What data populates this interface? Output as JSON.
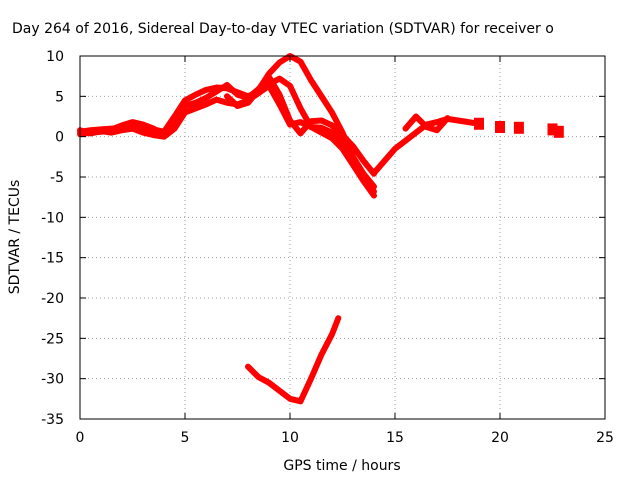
{
  "chart_data": {
    "type": "scatter",
    "title": "Day 264 of 2016, Sidereal Day-to-day VTEC variation (SDTVAR) for receiver o",
    "xlabel": "GPS time / hours",
    "ylabel": "SDTVAR / TECUs",
    "xlim": [
      0,
      25
    ],
    "ylim": [
      -35,
      10
    ],
    "xticks": [
      0,
      5,
      10,
      15,
      20,
      25
    ],
    "yticks": [
      10,
      5,
      0,
      -5,
      -10,
      -15,
      -20,
      -25,
      -30,
      -35
    ],
    "grid": true,
    "legend": "none",
    "colors": {
      "series": "#ff0000",
      "grid": "#a0a0a0",
      "axes": "#000000"
    },
    "series": [
      {
        "kind": "line",
        "x": [
          0.0,
          0.5,
          1.0,
          1.5,
          2.0,
          2.5,
          3.0,
          3.5,
          4.0,
          4.5,
          5.0,
          5.5,
          6.0,
          6.5,
          7.0,
          7.5,
          8.0,
          8.5,
          9.0,
          9.5,
          10.0,
          10.5,
          11.0,
          11.5,
          12.0,
          12.5,
          13.0,
          13.5,
          14.0
        ],
        "y": [
          0.6,
          0.8,
          0.9,
          1.0,
          1.1,
          1.2,
          1.0,
          0.9,
          0.6,
          2.5,
          4.5,
          5.2,
          5.8,
          6.1,
          6.0,
          5.5,
          5.0,
          5.6,
          6.5,
          7.2,
          6.3,
          3.5,
          1.2,
          0.5,
          -0.2,
          -1.5,
          -3.5,
          -5.5,
          -6.8
        ]
      },
      {
        "kind": "line",
        "x": [
          0.0,
          0.5,
          1.0,
          1.5,
          2.0,
          2.5,
          3.0,
          3.5,
          4.0,
          4.5,
          5.0,
          5.5,
          6.0,
          6.5,
          7.0,
          7.5,
          8.0,
          8.5,
          9.0,
          9.5,
          10.0,
          10.5,
          11.0,
          11.5,
          12.0,
          12.5,
          13.0,
          13.5,
          14.0
        ],
        "y": [
          0.3,
          0.5,
          0.6,
          0.9,
          1.4,
          1.8,
          1.5,
          1.0,
          0.2,
          1.8,
          3.8,
          4.2,
          4.8,
          5.6,
          6.4,
          5.2,
          4.8,
          5.9,
          7.4,
          5.2,
          2.0,
          0.4,
          1.9,
          2.0,
          1.4,
          0.2,
          -1.2,
          -3.0,
          -4.6
        ]
      },
      {
        "kind": "line",
        "x": [
          0.0,
          0.5,
          1.0,
          1.5,
          2.0,
          2.5,
          3.0,
          3.5,
          4.0,
          4.5,
          5.0,
          5.5,
          6.0,
          6.5,
          7.0,
          7.5,
          8.0,
          8.5,
          9.0,
          9.5,
          10.0,
          10.5,
          11.0,
          11.5,
          12.0,
          12.5,
          13.0,
          13.5,
          14.0
        ],
        "y": [
          0.8,
          0.4,
          0.7,
          0.5,
          0.8,
          1.0,
          0.5,
          0.2,
          0.0,
          1.0,
          3.0,
          3.5,
          4.0,
          4.6,
          4.2,
          4.0,
          4.5,
          5.4,
          6.3,
          4.0,
          1.5,
          1.8,
          1.2,
          1.1,
          0.5,
          -0.6,
          -2.5,
          -4.6,
          -6.2
        ]
      },
      {
        "kind": "line",
        "x": [
          7.0,
          7.5,
          8.0,
          8.5,
          9.0,
          9.5,
          10.0,
          10.5,
          11.0,
          11.5,
          12.0,
          12.5,
          13.0,
          13.5,
          14.0
        ],
        "y": [
          5.0,
          3.8,
          4.2,
          5.8,
          7.8,
          9.2,
          10.0,
          9.3,
          7.0,
          5.0,
          3.0,
          0.5,
          -2.5,
          -5.5,
          -7.3
        ]
      },
      {
        "kind": "line",
        "x": [
          8.0,
          8.5,
          9.0,
          9.5,
          10.0,
          10.5,
          11.0,
          11.5,
          12.0,
          12.3
        ],
        "y": [
          -28.5,
          -29.8,
          -30.5,
          -31.5,
          -32.5,
          -32.8,
          -30.0,
          -27.0,
          -24.5,
          -22.5
        ]
      },
      {
        "kind": "line",
        "x": [
          14.0,
          14.5,
          15.0,
          15.5,
          16.0,
          16.5,
          17.0,
          17.5,
          18.0,
          18.5,
          19.0
        ],
        "y": [
          -4.5,
          -3.0,
          -1.5,
          -0.5,
          0.5,
          1.5,
          1.8,
          2.2,
          2.0,
          1.8,
          1.6
        ]
      },
      {
        "kind": "line",
        "x": [
          15.5,
          16.0,
          16.5,
          17.0,
          17.5
        ],
        "y": [
          1.0,
          2.5,
          1.2,
          0.8,
          2.3
        ]
      },
      {
        "kind": "points",
        "x": [
          19.0,
          20.0,
          20.9,
          22.5,
          22.8
        ],
        "y": [
          1.6,
          1.2,
          1.1,
          0.9,
          0.6
        ]
      }
    ]
  }
}
